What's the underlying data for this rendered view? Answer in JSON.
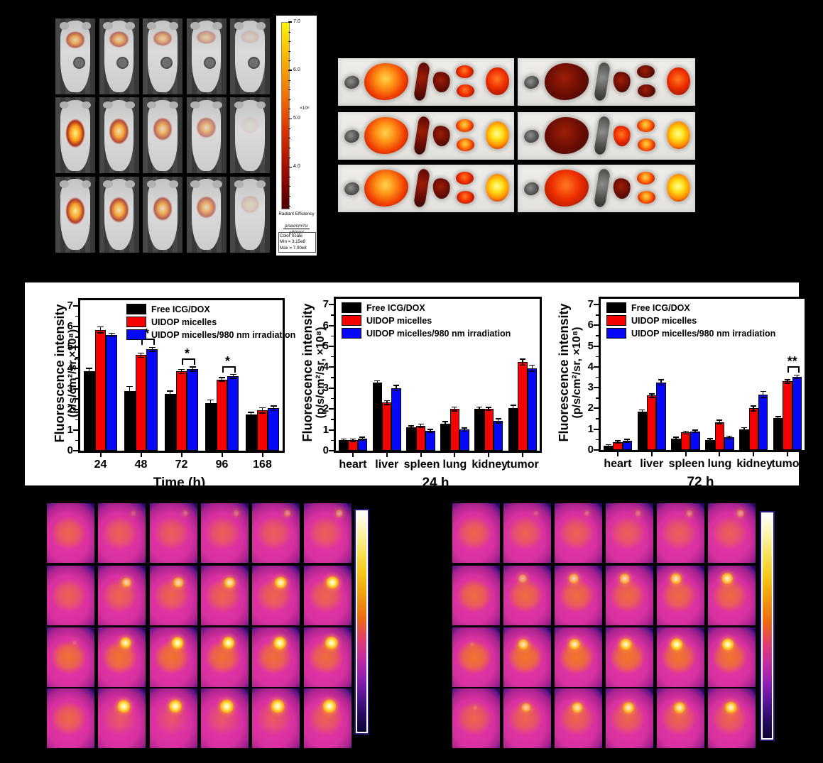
{
  "panel_a": {
    "rows": 3,
    "cols": 5,
    "signal": [
      [
        0.55,
        0.45,
        0.32,
        0.12,
        0.07
      ],
      [
        0.97,
        0.75,
        0.5,
        0.32,
        0.03
      ],
      [
        0.85,
        0.72,
        0.58,
        0.42,
        0.08
      ]
    ],
    "colorbar": {
      "tick_labels": [
        "7.0",
        "6.0",
        "5.0",
        "4.0"
      ],
      "range": [
        3.15,
        7.0
      ],
      "multiplier": "×10⁸",
      "title": "Radiant Efficiency",
      "unit_numerator": "p/sec/cm²/sr",
      "unit_denominator": "µW/cm²",
      "scale_title": "Color Scale",
      "scale_min": "Min = 3.15e8",
      "scale_max": "Max = 7.00e8"
    }
  },
  "panel_b": {
    "rows": 3,
    "columns": 2,
    "organ_order": [
      "heart",
      "liver",
      "spleen",
      "lung",
      "kidney",
      "tumor"
    ],
    "strips": [
      {
        "col": 0,
        "row": 0,
        "heat": {
          "heart": 0,
          "liver": 3,
          "spleen": 1,
          "lung": 1,
          "kidney": 2,
          "tumor": 2
        }
      },
      {
        "col": 0,
        "row": 1,
        "heat": {
          "heart": 0,
          "liver": 3,
          "spleen": 1,
          "lung": 1,
          "kidney": 3,
          "tumor": 4
        }
      },
      {
        "col": 0,
        "row": 2,
        "heat": {
          "heart": 0,
          "liver": 3,
          "spleen": 1,
          "lung": 1,
          "kidney": 2,
          "tumor": 4
        }
      },
      {
        "col": 1,
        "row": 0,
        "heat": {
          "heart": 0,
          "liver": 1,
          "spleen": 0,
          "lung": 1,
          "kidney": 1,
          "tumor": 2
        }
      },
      {
        "col": 1,
        "row": 1,
        "heat": {
          "heart": 0,
          "liver": 1,
          "spleen": 0,
          "lung": 2,
          "kidney": 3,
          "tumor": 4
        }
      },
      {
        "col": 1,
        "row": 2,
        "heat": {
          "heart": 0,
          "liver": 2,
          "spleen": 0,
          "lung": 1,
          "kidney": 3,
          "tumor": 4
        }
      }
    ]
  },
  "chart_data": [
    {
      "id": "time-course",
      "type": "bar",
      "ylabel_line1": "Fluorescence intensity",
      "ylabel_line2": "(p/s/cm²/sr,×10⁸)",
      "xlabel": "Time (h)",
      "ylim": [
        0,
        7
      ],
      "yticks": [
        0,
        1,
        2,
        3,
        4,
        5,
        6,
        7
      ],
      "categories": [
        "24",
        "48",
        "72",
        "96",
        "168"
      ],
      "series": [
        {
          "name": "Free ICG/DOX",
          "color": "#000000",
          "values": [
            3.85,
            2.9,
            2.75,
            2.3,
            1.75
          ],
          "errors": [
            0.1,
            0.18,
            0.1,
            0.13,
            0.08
          ]
        },
        {
          "name": "UIDOP micelles",
          "color": "#f80000",
          "values": [
            5.85,
            4.62,
            3.83,
            3.45,
            1.95
          ],
          "errors": [
            0.12,
            0.07,
            0.08,
            0.05,
            0.1
          ]
        },
        {
          "name": "UIDOP micelles/980 nm irradiation",
          "color": "#0808f8",
          "values": [
            5.6,
            4.9,
            3.95,
            3.6,
            2.05
          ],
          "errors": [
            0.06,
            0.07,
            0.07,
            0.06,
            0.08
          ]
        }
      ],
      "significance": [
        {
          "category": "48",
          "between": [
            1,
            2
          ],
          "label": "*"
        },
        {
          "category": "72",
          "between": [
            1,
            2
          ],
          "label": "*"
        },
        {
          "category": "96",
          "between": [
            1,
            2
          ],
          "label": "*"
        }
      ]
    },
    {
      "id": "biodistribution-24h",
      "type": "bar",
      "ylabel_line1": "Fluorescence intensity",
      "ylabel_line2": "(p/s/cm²/sr, ×10⁸)",
      "xlabel": "24 h",
      "ylim": [
        0,
        7
      ],
      "yticks": [
        0,
        1,
        2,
        3,
        4,
        5,
        6,
        7
      ],
      "categories": [
        "heart",
        "liver",
        "spleen",
        "lung",
        "kidney",
        "tumor"
      ],
      "series": [
        {
          "name": "Free ICG/DOX",
          "color": "#000000",
          "values": [
            0.5,
            3.25,
            1.12,
            1.3,
            2.0,
            2.05
          ],
          "errors": [
            0.04,
            0.08,
            0.04,
            0.06,
            0.06,
            0.1
          ]
        },
        {
          "name": "UIDOP micelles",
          "color": "#f80000",
          "values": [
            0.5,
            2.3,
            1.2,
            2.0,
            2.0,
            4.25
          ],
          "errors": [
            0.04,
            0.07,
            0.05,
            0.07,
            0.05,
            0.12
          ]
        },
        {
          "name": "UIDOP micelles/980 nm irradiation",
          "color": "#0808f8",
          "values": [
            0.57,
            3.0,
            0.95,
            1.02,
            1.43,
            3.95
          ],
          "errors": [
            0.04,
            0.1,
            0.04,
            0.05,
            0.08,
            0.12
          ]
        }
      ],
      "significance": []
    },
    {
      "id": "biodistribution-72h",
      "type": "bar",
      "ylabel_line1": "Fluorescence intensity",
      "ylabel_line2": "(p/s/cm²/sr, ×10⁸)",
      "xlabel": "72 h",
      "ylim": [
        0,
        7
      ],
      "yticks": [
        0,
        1,
        2,
        3,
        4,
        5,
        6,
        7
      ],
      "categories": [
        "heart",
        "liver",
        "spleen",
        "lung",
        "kidney",
        "tumor"
      ],
      "series": [
        {
          "name": "Free ICG/DOX",
          "color": "#000000",
          "values": [
            0.2,
            1.83,
            0.54,
            0.48,
            1.0,
            1.53
          ],
          "errors": [
            0.03,
            0.07,
            0.04,
            0.04,
            0.05,
            0.05
          ]
        },
        {
          "name": "UIDOP micelles",
          "color": "#f80000",
          "values": [
            0.38,
            2.62,
            0.84,
            1.35,
            2.0,
            3.3
          ],
          "errors": [
            0.03,
            0.06,
            0.04,
            0.05,
            0.1,
            0.05
          ]
        },
        {
          "name": "UIDOP micelles/980 nm irradiation",
          "color": "#0808f8",
          "values": [
            0.44,
            3.25,
            0.9,
            0.6,
            2.67,
            3.52
          ],
          "errors": [
            0.04,
            0.1,
            0.04,
            0.04,
            0.12,
            0.06
          ]
        }
      ],
      "significance": [
        {
          "category": "tumor",
          "between": [
            1,
            2
          ],
          "label": "**"
        }
      ]
    }
  ],
  "panel_f": {
    "rows": 4,
    "cols": 6,
    "body_warmth": [
      [
        0.6,
        0.55,
        0.5,
        0.5,
        0.5,
        0.5
      ],
      [
        0.55,
        0.6,
        0.6,
        0.6,
        0.6,
        0.6
      ],
      [
        0.85,
        0.9,
        0.9,
        0.85,
        0.8,
        0.75
      ],
      [
        0.65,
        0.35,
        0.3,
        0.35,
        0.4,
        0.55
      ]
    ],
    "spot": [
      [
        0,
        0.1,
        0.15,
        0.2,
        0.28,
        0.35
      ],
      [
        0,
        0.6,
        0.65,
        0.72,
        0.8,
        0.9
      ],
      [
        0.05,
        0.8,
        0.85,
        0.88,
        0.92,
        0.95
      ],
      [
        0,
        0.88,
        0.92,
        0.95,
        1.0,
        1.0
      ]
    ]
  },
  "panel_g": {
    "rows": 4,
    "cols": 6,
    "body_warmth": [
      [
        0.6,
        0.55,
        0.55,
        0.5,
        0.5,
        0.5
      ],
      [
        0.75,
        0.75,
        0.75,
        0.7,
        0.7,
        0.7
      ],
      [
        0.9,
        0.95,
        0.95,
        0.95,
        0.9,
        0.9
      ],
      [
        0.6,
        0.6,
        0.6,
        0.6,
        0.6,
        0.6
      ]
    ],
    "spot": [
      [
        0,
        0.08,
        0.15,
        0.2,
        0.25,
        0.35
      ],
      [
        0,
        0.45,
        0.6,
        0.65,
        0.7,
        0.75
      ],
      [
        0.05,
        0.7,
        0.75,
        0.8,
        0.85,
        0.85
      ],
      [
        0.05,
        0.55,
        0.7,
        0.75,
        0.75,
        0.8
      ]
    ]
  }
}
